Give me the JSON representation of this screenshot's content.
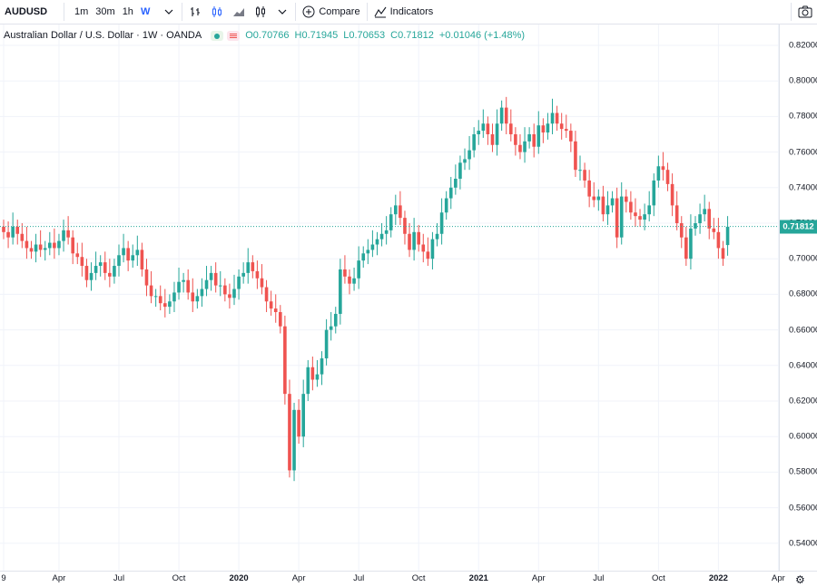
{
  "toolbar": {
    "symbol": "AUDUSD",
    "intervals": [
      {
        "label": "1m",
        "active": false
      },
      {
        "label": "30m",
        "active": false
      },
      {
        "label": "1h",
        "active": false
      },
      {
        "label": "W",
        "active": true
      }
    ],
    "compare_label": "Compare",
    "indicators_label": "Indicators",
    "icons": [
      "chevron-down-icon",
      "bar-style-icon",
      "candle-style-icon",
      "area-style-icon",
      "chart-type-icon",
      "chevron-down-icon",
      "compare-plus-icon",
      "indicators-icon",
      "camera-icon"
    ]
  },
  "legend": {
    "title": "Australian Dollar / U.S. Dollar · 1W · OANDA",
    "open": "O0.70766",
    "high": "H0.71945",
    "low": "L0.70653",
    "close": "C0.71812",
    "change": "+0.01046 (+1.48%)"
  },
  "last_price_label": "0.71812",
  "colors": {
    "up": "#26a69a",
    "down": "#ef5350",
    "grid": "#f0f3fa",
    "price_line": "#26a69a"
  },
  "chart_data": {
    "type": "candlestick",
    "title": "Australian Dollar / U.S. Dollar · 1W · OANDA",
    "ylim": [
      0.53,
      0.83
    ],
    "y_ticks": [
      "0.82000",
      "0.80000",
      "0.78000",
      "0.76000",
      "0.74000",
      "0.72000",
      "0.70000",
      "0.68000",
      "0.66000",
      "0.64000",
      "0.62000",
      "0.60000",
      "0.58000",
      "0.56000",
      "0.54000"
    ],
    "x_ticks": [
      {
        "label": "9",
        "bold": false,
        "w": 0
      },
      {
        "label": "Apr",
        "bold": false,
        "w": 12
      },
      {
        "label": "Jul",
        "bold": false,
        "w": 25
      },
      {
        "label": "Oct",
        "bold": false,
        "w": 38
      },
      {
        "label": "2020",
        "bold": true,
        "w": 51
      },
      {
        "label": "Apr",
        "bold": false,
        "w": 64
      },
      {
        "label": "Jul",
        "bold": false,
        "w": 77
      },
      {
        "label": "Oct",
        "bold": false,
        "w": 90
      },
      {
        "label": "2021",
        "bold": true,
        "w": 103
      },
      {
        "label": "Apr",
        "bold": false,
        "w": 116
      },
      {
        "label": "Jul",
        "bold": false,
        "w": 129
      },
      {
        "label": "Oct",
        "bold": false,
        "w": 142
      },
      {
        "label": "2022",
        "bold": true,
        "w": 155
      },
      {
        "label": "Apr",
        "bold": false,
        "w": 168
      }
    ],
    "last_price": 0.71812,
    "closes": [
      0.715,
      0.712,
      0.718,
      0.714,
      0.71,
      0.706,
      0.704,
      0.708,
      0.705,
      0.706,
      0.709,
      0.706,
      0.71,
      0.716,
      0.712,
      0.703,
      0.701,
      0.696,
      0.688,
      0.692,
      0.696,
      0.698,
      0.692,
      0.69,
      0.696,
      0.702,
      0.706,
      0.699,
      0.702,
      0.705,
      0.694,
      0.685,
      0.679,
      0.679,
      0.675,
      0.673,
      0.676,
      0.681,
      0.687,
      0.688,
      0.681,
      0.676,
      0.679,
      0.683,
      0.688,
      0.692,
      0.685,
      0.685,
      0.68,
      0.678,
      0.683,
      0.69,
      0.692,
      0.698,
      0.693,
      0.689,
      0.684,
      0.676,
      0.672,
      0.67,
      0.662,
      0.624,
      0.581,
      0.615,
      0.6,
      0.624,
      0.639,
      0.632,
      0.635,
      0.644,
      0.66,
      0.662,
      0.669,
      0.694,
      0.69,
      0.686,
      0.689,
      0.699,
      0.703,
      0.705,
      0.708,
      0.711,
      0.714,
      0.716,
      0.725,
      0.73,
      0.723,
      0.714,
      0.705,
      0.715,
      0.708,
      0.704,
      0.7,
      0.711,
      0.714,
      0.726,
      0.734,
      0.74,
      0.745,
      0.754,
      0.756,
      0.761,
      0.77,
      0.772,
      0.776,
      0.77,
      0.764,
      0.776,
      0.785,
      0.776,
      0.77,
      0.764,
      0.76,
      0.766,
      0.77,
      0.763,
      0.775,
      0.771,
      0.776,
      0.782,
      0.776,
      0.773,
      0.772,
      0.766,
      0.75,
      0.75,
      0.744,
      0.735,
      0.733,
      0.735,
      0.725,
      0.73,
      0.734,
      0.712,
      0.735,
      0.732,
      0.726,
      0.724,
      0.722,
      0.725,
      0.73,
      0.744,
      0.752,
      0.75,
      0.742,
      0.73,
      0.72,
      0.712,
      0.7,
      0.717,
      0.72,
      0.725,
      0.728,
      0.717,
      0.715,
      0.706,
      0.7,
      0.718
    ],
    "opens": [
      0.718,
      0.715,
      0.712,
      0.718,
      0.714,
      0.71,
      0.706,
      0.704,
      0.708,
      0.705,
      0.706,
      0.709,
      0.706,
      0.71,
      0.716,
      0.712,
      0.703,
      0.701,
      0.696,
      0.688,
      0.692,
      0.696,
      0.698,
      0.692,
      0.69,
      0.696,
      0.702,
      0.706,
      0.699,
      0.702,
      0.705,
      0.694,
      0.685,
      0.679,
      0.679,
      0.675,
      0.673,
      0.676,
      0.681,
      0.687,
      0.688,
      0.681,
      0.676,
      0.679,
      0.683,
      0.688,
      0.692,
      0.685,
      0.685,
      0.68,
      0.678,
      0.683,
      0.69,
      0.692,
      0.698,
      0.693,
      0.689,
      0.684,
      0.676,
      0.672,
      0.67,
      0.662,
      0.624,
      0.581,
      0.615,
      0.6,
      0.624,
      0.639,
      0.632,
      0.635,
      0.644,
      0.66,
      0.662,
      0.669,
      0.694,
      0.69,
      0.686,
      0.689,
      0.699,
      0.703,
      0.705,
      0.708,
      0.711,
      0.714,
      0.716,
      0.725,
      0.73,
      0.723,
      0.714,
      0.705,
      0.715,
      0.708,
      0.704,
      0.7,
      0.711,
      0.714,
      0.726,
      0.734,
      0.74,
      0.745,
      0.754,
      0.756,
      0.761,
      0.77,
      0.772,
      0.776,
      0.77,
      0.764,
      0.776,
      0.785,
      0.776,
      0.77,
      0.764,
      0.76,
      0.766,
      0.77,
      0.763,
      0.775,
      0.771,
      0.776,
      0.782,
      0.776,
      0.773,
      0.772,
      0.766,
      0.75,
      0.75,
      0.744,
      0.735,
      0.733,
      0.735,
      0.725,
      0.73,
      0.734,
      0.712,
      0.735,
      0.732,
      0.726,
      0.724,
      0.722,
      0.725,
      0.73,
      0.744,
      0.752,
      0.75,
      0.742,
      0.73,
      0.72,
      0.712,
      0.7,
      0.717,
      0.72,
      0.725,
      0.728,
      0.717,
      0.715,
      0.706,
      0.7077
    ]
  }
}
